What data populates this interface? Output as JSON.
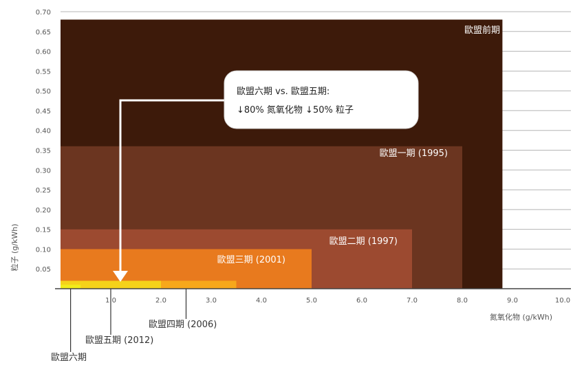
{
  "chart_data": {
    "type": "area",
    "xlabel": "氮氧化物 (g/kWh)",
    "ylabel": "粒子 (g/kWh)",
    "xlim": [
      0,
      10
    ],
    "ylim": [
      0,
      0.7
    ],
    "x_ticks": [
      "1.0",
      "2.0",
      "3.0",
      "4.0",
      "5.0",
      "6.0",
      "7.0",
      "8.0",
      "9.0",
      "10.0"
    ],
    "y_ticks": [
      "0.05",
      "0.10",
      "0.15",
      "0.20",
      "0.25",
      "0.30",
      "0.35",
      "0.40",
      "0.45",
      "0.50",
      "0.55",
      "0.60",
      "0.65",
      "0.70"
    ],
    "grid": "horizontal",
    "regions": [
      {
        "label": "歐盟前期",
        "nox": 8.8,
        "pm": 0.68,
        "color": "#3d1a0a"
      },
      {
        "label": "歐盟一期 (1995)",
        "nox": 8.0,
        "pm": 0.36,
        "color": "#6b3520"
      },
      {
        "label": "歐盟二期 (1997)",
        "nox": 7.0,
        "pm": 0.15,
        "color": "#9c4a30"
      },
      {
        "label": "",
        "nox": 5.0,
        "pm": 0.1,
        "color": "#e87a1e"
      },
      {
        "label": "",
        "nox": 3.5,
        "pm": 0.02,
        "color": "#f7a81b"
      },
      {
        "label": "",
        "nox": 2.0,
        "pm": 0.02,
        "color": "#f5d21a"
      },
      {
        "label": "",
        "nox": 0.4,
        "pm": 0.01,
        "color": "#f2ec1a"
      }
    ],
    "region_label_euro3": "歐盟三期 (2001)",
    "stage_labels": [
      {
        "label": "歐盟四期 (2006)",
        "nox": 2.5
      },
      {
        "label": "歐盟五期 (2012)",
        "nox": 1.0
      },
      {
        "label": "歐盟六期",
        "nox": 0.2
      }
    ],
    "callout": {
      "line1": "歐盟六期 vs. 歐盟五期:",
      "line2": "↓80% 氮氧化物  ↓50% 粒子"
    }
  }
}
